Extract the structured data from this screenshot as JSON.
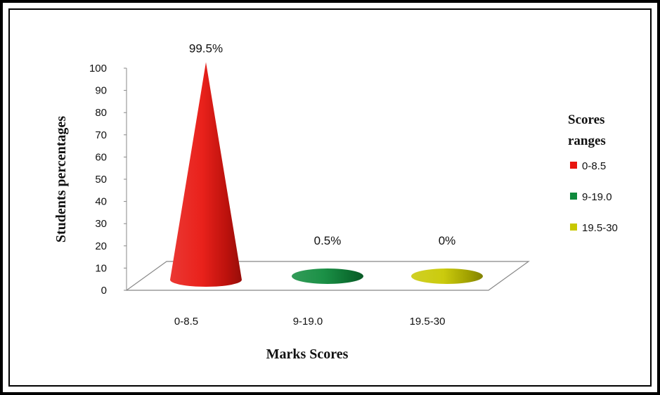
{
  "chart_data": {
    "type": "bar",
    "title": "",
    "xlabel": "Marks Scores",
    "ylabel": "Students percentages",
    "ylim": [
      0,
      100
    ],
    "yticks": [
      0,
      10,
      20,
      30,
      40,
      50,
      60,
      70,
      80,
      90,
      100
    ],
    "categories": [
      "0-8.5",
      "9-19.0",
      "19.5-30"
    ],
    "values": [
      99.5,
      0.5,
      0
    ],
    "data_labels": [
      "99.5%",
      "0.5%",
      "0%"
    ],
    "colors": [
      "#e8150f",
      "#0f8a3c",
      "#c8c800"
    ],
    "mark_shape": "cone",
    "legend": {
      "title_lines": [
        "Scores",
        "ranges"
      ],
      "position": "right",
      "entries": [
        "0-8.5",
        "9-19.0",
        "19.5-30"
      ]
    },
    "grid": false
  }
}
